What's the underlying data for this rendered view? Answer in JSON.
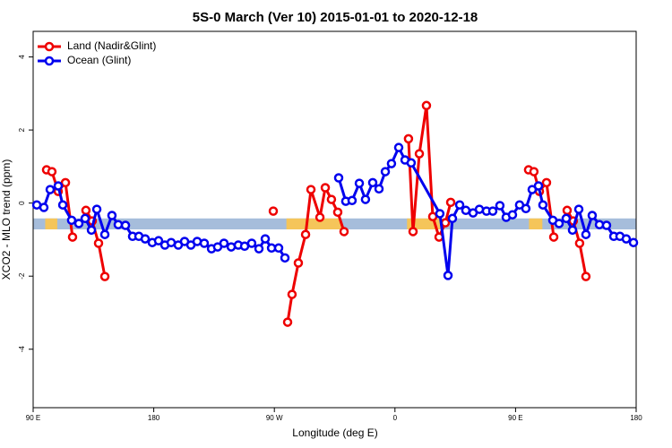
{
  "chart_data": {
    "type": "line",
    "title": "5S-0 March (Ver 10)   2015-01-01 to 2020-12-18",
    "x_label": "Longitude (deg E)",
    "y_label": "XCO2 - MLO trend (ppm)",
    "xlim": [
      90,
      540
    ],
    "ylim": [
      -5.6,
      4.7
    ],
    "xticks": [
      {
        "value": 90,
        "label": "90 E"
      },
      180,
      {
        "value": 270,
        "label": "90 W"
      },
      {
        "value": 360,
        "label": "0"
      },
      {
        "value": 450,
        "label": "90 E"
      },
      {
        "value": 540,
        "label": "180"
      }
    ],
    "yticks": [
      -4,
      -2,
      0,
      2,
      4
    ],
    "legend": "top-left",
    "band": {
      "ylim": [
        -0.72,
        -0.42
      ],
      "color": "#a6bddb"
    },
    "land_ranges": {
      "color": "#f5c55a",
      "ranges": [
        [
          99,
          108
        ],
        [
          279,
          320
        ],
        [
          369,
          394
        ],
        [
          460,
          470
        ]
      ]
    },
    "series": [
      {
        "name": "Land (Nadir&Glint)",
        "color": "#ee0000",
        "x": [
          100.0,
          104.0,
          108.7,
          114.1,
          119.4,
          null,
          129.4,
          134.1,
          138.8,
          143.5,
          null,
          269.2,
          null,
          279.9,
          283.2,
          287.9,
          293.3,
          297.3,
          304.0,
          308.0,
          312.6,
          317.3,
          322.0,
          null,
          370.1,
          373.5,
          378.2,
          383.5,
          388.2,
          392.9,
          397.6,
          401.6,
          null,
          459.7,
          463.7,
          467.8,
          473.1,
          478.5,
          null,
          488.5,
          493.1,
          497.8,
          502.5
        ],
        "values": [
          0.91,
          0.86,
          0.32,
          0.56,
          -0.93,
          null,
          -0.2,
          -0.49,
          -1.1,
          -2.01,
          null,
          -0.22,
          null,
          -3.26,
          -2.5,
          -1.64,
          -0.86,
          0.37,
          -0.39,
          0.42,
          0.1,
          -0.25,
          -0.78,
          null,
          1.76,
          -0.78,
          1.35,
          2.67,
          -0.37,
          -0.93,
          -0.54,
          0.02,
          null,
          0.91,
          0.86,
          0.32,
          0.56,
          -0.93,
          null,
          -0.2,
          -0.49,
          -1.1,
          -2.01
        ]
      },
      {
        "name": "Ocean (Glint)",
        "color": "#0000ee",
        "x": [
          92.7,
          98.0,
          102.7,
          108.7,
          112.1,
          118.7,
          124.1,
          128.8,
          133.5,
          137.5,
          143.5,
          148.8,
          153.5,
          158.9,
          164.2,
          168.9,
          173.6,
          178.9,
          183.6,
          188.3,
          193.0,
          198.3,
          203.0,
          207.7,
          212.4,
          217.7,
          223.1,
          227.7,
          232.4,
          237.8,
          243.1,
          247.8,
          253.1,
          258.5,
          263.2,
          267.9,
          273.2,
          277.9,
          null,
          318.0,
          323.3,
          328.0,
          333.4,
          338.0,
          343.4,
          348.1,
          352.8,
          357.4,
          362.8,
          367.5,
          372.1,
          393.5,
          399.6,
          402.9,
          408.3,
          412.9,
          418.3,
          423.0,
          428.3,
          433.0,
          438.3,
          443.0,
          447.7,
          453.0,
          457.7,
          462.4,
          467.1,
          470.4,
          477.8,
          482.5,
          487.8,
          492.5,
          497.2,
          502.5,
          507.2,
          512.6,
          517.9,
          523.3,
          527.9,
          532.6,
          538.0
        ],
        "values": [
          -0.05,
          -0.12,
          0.37,
          0.47,
          -0.05,
          -0.47,
          -0.56,
          -0.42,
          -0.74,
          -0.17,
          -0.86,
          -0.34,
          -0.59,
          -0.61,
          -0.91,
          -0.91,
          -0.98,
          -1.08,
          -1.03,
          -1.15,
          -1.08,
          -1.15,
          -1.05,
          -1.15,
          -1.05,
          -1.1,
          -1.25,
          -1.2,
          -1.1,
          -1.2,
          -1.15,
          -1.18,
          -1.1,
          -1.25,
          -0.98,
          -1.23,
          -1.23,
          -1.5,
          null,
          0.69,
          0.05,
          0.07,
          0.54,
          0.1,
          0.56,
          0.39,
          0.86,
          1.08,
          1.52,
          1.18,
          1.1,
          -0.29,
          -1.98,
          -0.42,
          -0.05,
          -0.2,
          -0.27,
          -0.17,
          -0.22,
          -0.22,
          -0.07,
          -0.39,
          -0.32,
          -0.05,
          -0.15,
          0.37,
          0.47,
          -0.05,
          -0.47,
          -0.56,
          -0.42,
          -0.74,
          -0.17,
          -0.86,
          -0.34,
          -0.59,
          -0.61,
          -0.91,
          -0.91,
          -0.98,
          -1.08
        ]
      }
    ]
  }
}
